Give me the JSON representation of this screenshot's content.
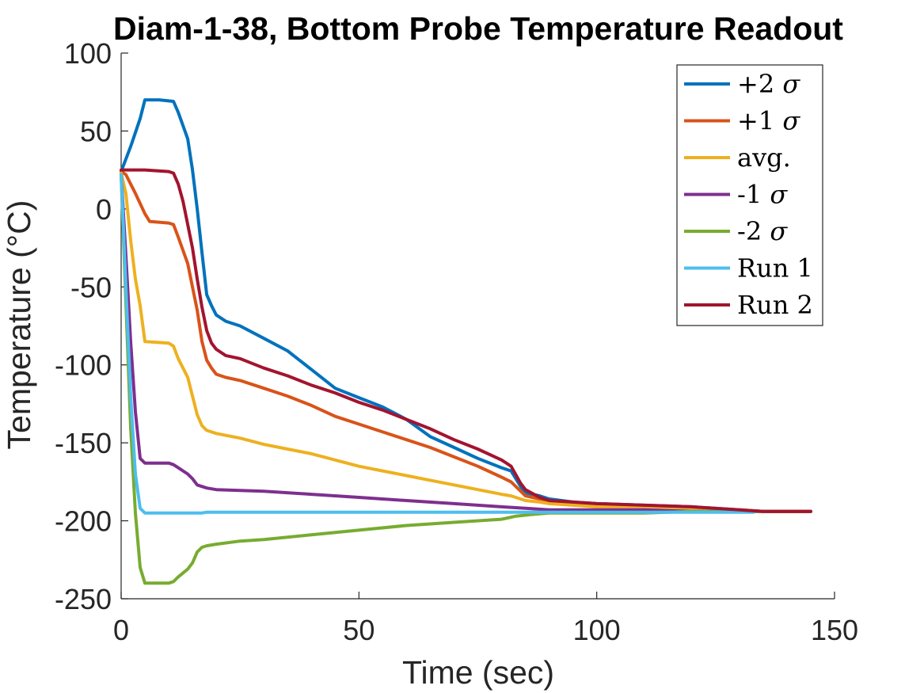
{
  "chart_data": {
    "type": "line",
    "title": "Diam-1-38, Bottom Probe Temperature Readout",
    "xlabel": "Time (sec)",
    "ylabel": "Temperature (°C)",
    "xlim": [
      0,
      150
    ],
    "ylim": [
      -250,
      100
    ],
    "xticks": [
      0,
      50,
      100,
      150
    ],
    "yticks": [
      -250,
      -200,
      -150,
      -100,
      -50,
      0,
      50,
      100
    ],
    "grid": false,
    "legend_position": "top-right",
    "series": [
      {
        "name": "+2 σ",
        "color": "#0072BD",
        "points": [
          [
            0,
            24
          ],
          [
            2,
            40
          ],
          [
            4,
            58
          ],
          [
            5,
            70
          ],
          [
            8,
            70
          ],
          [
            11,
            69
          ],
          [
            12,
            62
          ],
          [
            14,
            45
          ],
          [
            15,
            25
          ],
          [
            16,
            0
          ],
          [
            17,
            -28
          ],
          [
            18,
            -55
          ],
          [
            19,
            -62
          ],
          [
            20,
            -68
          ],
          [
            22,
            -72
          ],
          [
            25,
            -75
          ],
          [
            30,
            -83
          ],
          [
            35,
            -91
          ],
          [
            40,
            -103
          ],
          [
            45,
            -115
          ],
          [
            50,
            -121
          ],
          [
            55,
            -127
          ],
          [
            60,
            -135
          ],
          [
            65,
            -146
          ],
          [
            70,
            -153
          ],
          [
            75,
            -160
          ],
          [
            80,
            -166
          ],
          [
            82,
            -168
          ],
          [
            84,
            -178
          ],
          [
            85,
            -182
          ],
          [
            88,
            -184
          ],
          [
            90,
            -186
          ],
          [
            95,
            -188
          ],
          [
            100,
            -189
          ],
          [
            110,
            -190
          ],
          [
            120,
            -191
          ],
          [
            130,
            -193
          ],
          [
            135,
            -194
          ],
          [
            140,
            -194
          ],
          [
            145,
            -194
          ]
        ]
      },
      {
        "name": "+1 σ",
        "color": "#D95319",
        "points": [
          [
            0,
            24
          ],
          [
            1,
            22
          ],
          [
            3,
            10
          ],
          [
            5,
            -3
          ],
          [
            6,
            -8
          ],
          [
            10,
            -9
          ],
          [
            11,
            -10
          ],
          [
            12,
            -18
          ],
          [
            14,
            -35
          ],
          [
            15,
            -50
          ],
          [
            16,
            -65
          ],
          [
            17,
            -85
          ],
          [
            18,
            -97
          ],
          [
            19,
            -102
          ],
          [
            20,
            -106
          ],
          [
            22,
            -108
          ],
          [
            25,
            -110
          ],
          [
            30,
            -115
          ],
          [
            35,
            -120
          ],
          [
            40,
            -126
          ],
          [
            45,
            -133
          ],
          [
            50,
            -138
          ],
          [
            55,
            -143
          ],
          [
            60,
            -148
          ],
          [
            65,
            -153
          ],
          [
            70,
            -159
          ],
          [
            75,
            -165
          ],
          [
            80,
            -172
          ],
          [
            82,
            -175
          ],
          [
            84,
            -181
          ],
          [
            85,
            -184
          ],
          [
            88,
            -186
          ],
          [
            90,
            -187
          ],
          [
            95,
            -189
          ],
          [
            100,
            -190
          ],
          [
            110,
            -191
          ],
          [
            120,
            -192
          ],
          [
            130,
            -193
          ],
          [
            135,
            -194
          ],
          [
            140,
            -194
          ],
          [
            145,
            -194
          ]
        ]
      },
      {
        "name": "avg.",
        "color": "#EDB120",
        "points": [
          [
            0,
            23
          ],
          [
            1,
            10
          ],
          [
            2,
            -20
          ],
          [
            3,
            -45
          ],
          [
            4,
            -62
          ],
          [
            5,
            -85
          ],
          [
            10,
            -86
          ],
          [
            11,
            -88
          ],
          [
            12,
            -96
          ],
          [
            14,
            -108
          ],
          [
            15,
            -120
          ],
          [
            16,
            -132
          ],
          [
            17,
            -139
          ],
          [
            18,
            -142
          ],
          [
            20,
            -144
          ],
          [
            25,
            -147
          ],
          [
            30,
            -151
          ],
          [
            35,
            -154
          ],
          [
            40,
            -157
          ],
          [
            45,
            -161
          ],
          [
            50,
            -165
          ],
          [
            55,
            -168
          ],
          [
            60,
            -171
          ],
          [
            65,
            -174
          ],
          [
            70,
            -177
          ],
          [
            75,
            -180
          ],
          [
            80,
            -183
          ],
          [
            82,
            -184
          ],
          [
            85,
            -187
          ],
          [
            88,
            -188
          ],
          [
            90,
            -189
          ],
          [
            95,
            -190
          ],
          [
            100,
            -191
          ],
          [
            110,
            -191
          ],
          [
            120,
            -192
          ],
          [
            130,
            -193
          ],
          [
            135,
            -194
          ],
          [
            140,
            -194
          ],
          [
            145,
            -194
          ]
        ]
      },
      {
        "name": "-1 σ",
        "color": "#7E2F8E",
        "points": [
          [
            0,
            22
          ],
          [
            1,
            -30
          ],
          [
            2,
            -85
          ],
          [
            3,
            -130
          ],
          [
            4,
            -160
          ],
          [
            5,
            -163
          ],
          [
            10,
            -163
          ],
          [
            11,
            -164
          ],
          [
            12,
            -166
          ],
          [
            14,
            -170
          ],
          [
            15,
            -173
          ],
          [
            16,
            -177
          ],
          [
            18,
            -179
          ],
          [
            20,
            -180
          ],
          [
            30,
            -181
          ],
          [
            40,
            -183
          ],
          [
            50,
            -185
          ],
          [
            60,
            -187
          ],
          [
            70,
            -189
          ],
          [
            80,
            -191
          ],
          [
            85,
            -192
          ],
          [
            90,
            -193
          ],
          [
            100,
            -193
          ],
          [
            110,
            -193
          ],
          [
            120,
            -194
          ],
          [
            130,
            -194
          ],
          [
            140,
            -194
          ],
          [
            145,
            -194
          ]
        ]
      },
      {
        "name": "-2 σ",
        "color": "#77AC30",
        "points": [
          [
            0,
            22
          ],
          [
            1,
            -60
          ],
          [
            2,
            -140
          ],
          [
            3,
            -195
          ],
          [
            4,
            -230
          ],
          [
            5,
            -240
          ],
          [
            10,
            -240
          ],
          [
            11,
            -239
          ],
          [
            12,
            -236
          ],
          [
            14,
            -231
          ],
          [
            15,
            -227
          ],
          [
            16,
            -220
          ],
          [
            17,
            -217
          ],
          [
            18,
            -216
          ],
          [
            20,
            -215
          ],
          [
            25,
            -213
          ],
          [
            30,
            -212
          ],
          [
            40,
            -209
          ],
          [
            50,
            -206
          ],
          [
            60,
            -203
          ],
          [
            70,
            -201
          ],
          [
            80,
            -199
          ],
          [
            83,
            -197
          ],
          [
            86,
            -196
          ],
          [
            90,
            -195
          ],
          [
            100,
            -195
          ],
          [
            110,
            -195
          ],
          [
            120,
            -194
          ],
          [
            130,
            -194
          ],
          [
            140,
            -194
          ],
          [
            145,
            -194
          ]
        ]
      },
      {
        "name": "Run 1",
        "color": "#4DBEEE",
        "points": [
          [
            0,
            22
          ],
          [
            1,
            -50
          ],
          [
            2,
            -120
          ],
          [
            3,
            -170
          ],
          [
            4,
            -192
          ],
          [
            5,
            -195
          ],
          [
            10,
            -195
          ],
          [
            17,
            -195
          ],
          [
            18,
            -194.5
          ],
          [
            30,
            -194.5
          ],
          [
            50,
            -194.5
          ],
          [
            70,
            -194.5
          ],
          [
            90,
            -194.5
          ],
          [
            110,
            -194.5
          ],
          [
            130,
            -194.5
          ],
          [
            133,
            -194.5
          ]
        ]
      },
      {
        "name": "Run 2",
        "color": "#A2142F",
        "points": [
          [
            0,
            25
          ],
          [
            5,
            25
          ],
          [
            10,
            24
          ],
          [
            11,
            23
          ],
          [
            12,
            16
          ],
          [
            13,
            5
          ],
          [
            14,
            -10
          ],
          [
            15,
            -25
          ],
          [
            16,
            -45
          ],
          [
            17,
            -63
          ],
          [
            18,
            -78
          ],
          [
            19,
            -86
          ],
          [
            20,
            -90
          ],
          [
            22,
            -94
          ],
          [
            25,
            -96
          ],
          [
            30,
            -102
          ],
          [
            35,
            -107
          ],
          [
            40,
            -113
          ],
          [
            45,
            -118
          ],
          [
            50,
            -124
          ],
          [
            55,
            -129
          ],
          [
            60,
            -135
          ],
          [
            65,
            -141
          ],
          [
            70,
            -148
          ],
          [
            75,
            -154
          ],
          [
            80,
            -161
          ],
          [
            82,
            -165
          ],
          [
            84,
            -176
          ],
          [
            85,
            -180
          ],
          [
            88,
            -185
          ],
          [
            90,
            -187
          ],
          [
            95,
            -188
          ],
          [
            100,
            -189
          ],
          [
            110,
            -190
          ],
          [
            120,
            -191
          ],
          [
            130,
            -193
          ],
          [
            135,
            -194
          ],
          [
            140,
            -194
          ],
          [
            145,
            -194
          ]
        ]
      }
    ]
  }
}
